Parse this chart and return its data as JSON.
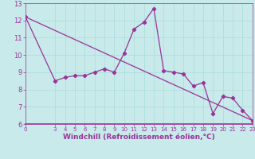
{
  "x_data": [
    0,
    3,
    4,
    5,
    6,
    7,
    8,
    9,
    10,
    11,
    12,
    13,
    14,
    15,
    16,
    17,
    18,
    19,
    20,
    21,
    22,
    23
  ],
  "y_data": [
    12.2,
    8.5,
    8.7,
    8.8,
    8.8,
    9.0,
    9.2,
    9.0,
    10.1,
    11.5,
    11.9,
    12.7,
    9.1,
    9.0,
    8.9,
    8.2,
    8.4,
    6.6,
    7.6,
    7.5,
    6.8,
    6.2
  ],
  "trend_x": [
    0,
    23
  ],
  "trend_y": [
    12.2,
    6.2
  ],
  "line_color": "#993399",
  "bg_color": "#c8eaea",
  "ylim": [
    6,
    13
  ],
  "xlim": [
    0,
    23
  ],
  "yticks": [
    6,
    7,
    8,
    9,
    10,
    11,
    12,
    13
  ],
  "xticks": [
    0,
    3,
    4,
    5,
    6,
    7,
    8,
    9,
    10,
    11,
    12,
    13,
    14,
    15,
    16,
    17,
    18,
    19,
    20,
    21,
    22,
    23
  ],
  "grid_color": "#b0dede",
  "tick_color": "#993399",
  "xlabel": "Windchill (Refroidissement éolien,°C)",
  "xlabel_color": "#993399",
  "xlabel_fontsize": 6.5,
  "tick_fontsize_x": 5.0,
  "tick_fontsize_y": 6.0,
  "linewidth": 0.9,
  "markersize": 2.2
}
